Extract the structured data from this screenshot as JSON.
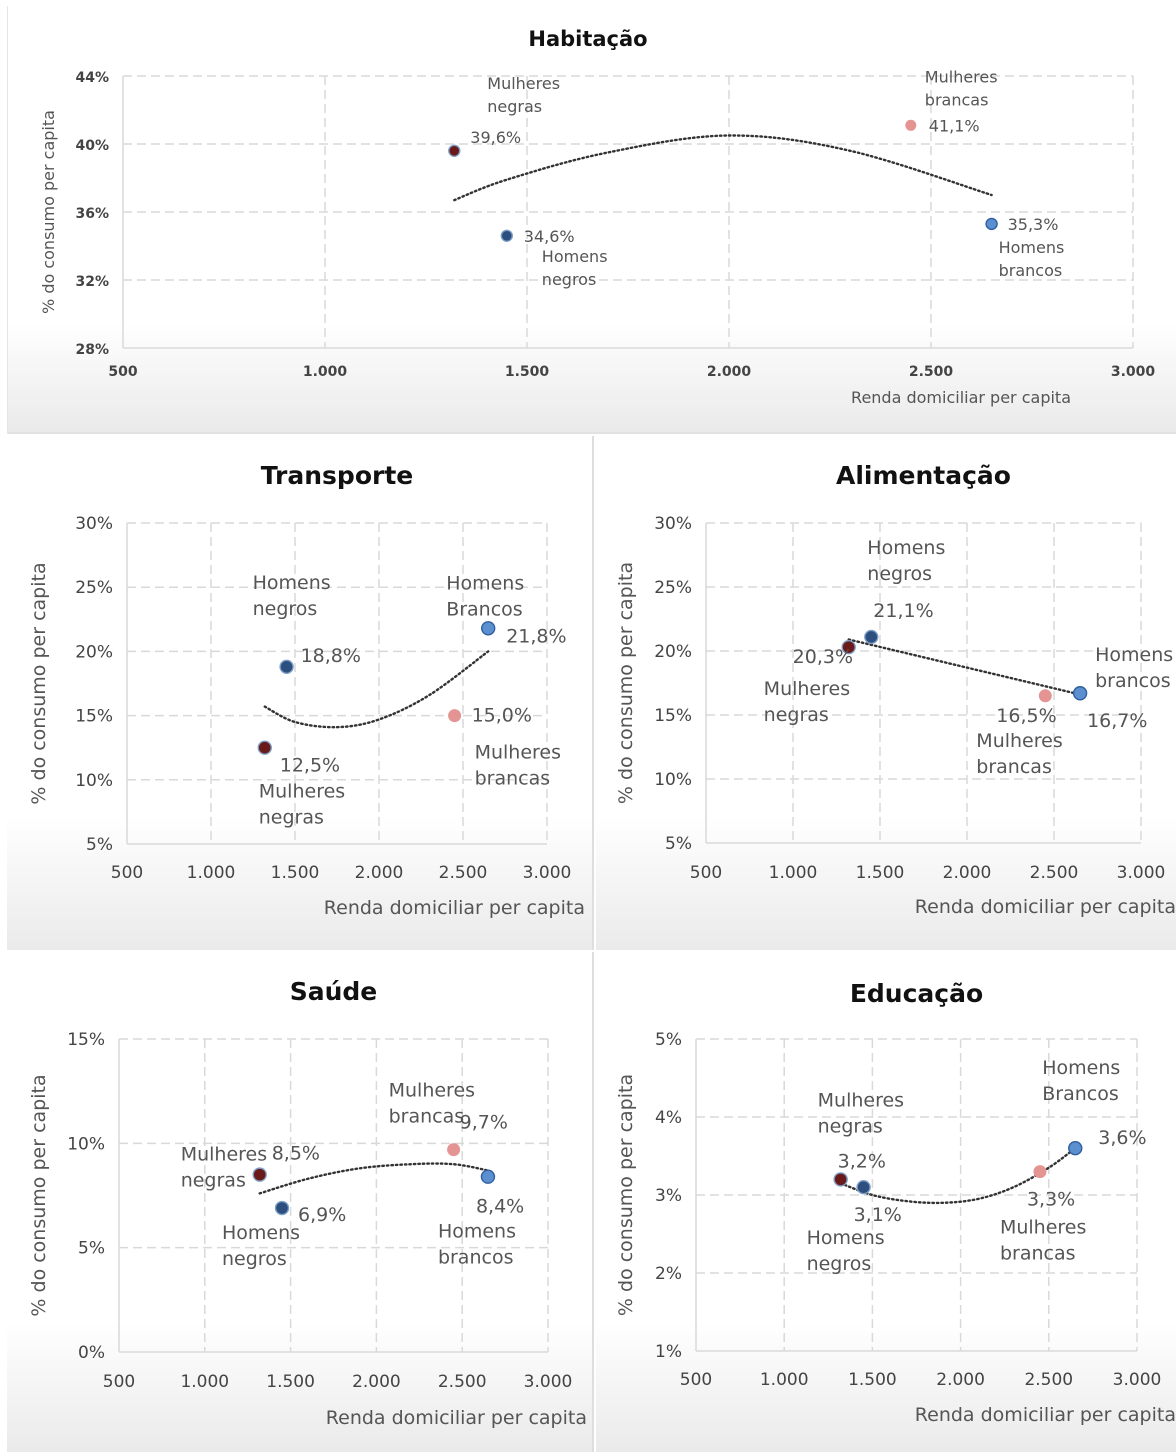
{
  "colors": {
    "mulheres_negras": "#6b1a1a",
    "homens_negros": "#2c4f7f",
    "mulheres_brancas": "#e39493",
    "homens_brancos": "#5b8fd0",
    "grid": "#d9d9d9",
    "trend": "#333333"
  },
  "chart_data": [
    {
      "id": "habitacao",
      "type": "scatter",
      "title": "Habitação",
      "xlabel": "Renda domiciliar per capita",
      "ylabel": "% do consumo per capita",
      "xlim": [
        500,
        3000
      ],
      "ylim": [
        28,
        44
      ],
      "xticks": [
        "500",
        "1.000",
        "1.500",
        "2.000",
        "2.500",
        "3.000"
      ],
      "yticks": [
        "28%",
        "32%",
        "36%",
        "40%",
        "44%"
      ],
      "grid": true,
      "trendline": "polynomial",
      "trend": {
        "x": [
          1320,
          1450,
          1700,
          2000,
          2300,
          2650
        ],
        "y": [
          36.7,
          37.9,
          39.5,
          40.5,
          39.6,
          37.0
        ]
      },
      "points": [
        {
          "series": "mulheres_negras",
          "name": "Mulheres negras",
          "x": 1320,
          "y": 39.6,
          "value_label": "39,6%",
          "label_lines": [
            "Mulheres",
            "negras"
          ]
        },
        {
          "series": "homens_negros",
          "name": "Homens negros",
          "x": 1450,
          "y": 34.6,
          "value_label": "34,6%",
          "label_lines": [
            "Homens",
            "negros"
          ]
        },
        {
          "series": "mulheres_brancas",
          "name": "Mulheres brancas",
          "x": 2450,
          "y": 41.1,
          "value_label": "41,1%",
          "label_lines": [
            "Mulheres",
            "brancas"
          ]
        },
        {
          "series": "homens_brancos",
          "name": "Homens brancos",
          "x": 2650,
          "y": 35.3,
          "value_label": "35,3%",
          "label_lines": [
            "Homens",
            "brancos"
          ]
        }
      ]
    },
    {
      "id": "transporte",
      "type": "scatter",
      "title": "Transporte",
      "xlabel": "Renda domiciliar per capita",
      "ylabel": "% do consumo per capita",
      "xlim": [
        500,
        3000
      ],
      "ylim": [
        5,
        30
      ],
      "xticks": [
        "500",
        "1.000",
        "1.500",
        "2.000",
        "2.500",
        "3.000"
      ],
      "yticks": [
        "5%",
        "10%",
        "15%",
        "20%",
        "25%",
        "30%"
      ],
      "grid": true,
      "trendline": "polynomial",
      "trend": {
        "x": [
          1320,
          1500,
          1750,
          2000,
          2300,
          2650
        ],
        "y": [
          15.7,
          14.5,
          14.1,
          14.7,
          16.6,
          20.0
        ]
      },
      "points": [
        {
          "series": "mulheres_negras",
          "name": "Mulheres negras",
          "x": 1320,
          "y": 12.5,
          "value_label": "12,5%",
          "label_lines": [
            "Mulheres",
            "negras"
          ]
        },
        {
          "series": "homens_negros",
          "name": "Homens negros",
          "x": 1450,
          "y": 18.8,
          "value_label": "18,8%",
          "label_lines": [
            "Homens",
            "negros"
          ]
        },
        {
          "series": "mulheres_brancas",
          "name": "Mulheres brancas",
          "x": 2450,
          "y": 15.0,
          "value_label": "15,0%",
          "label_lines": [
            "Mulheres",
            "brancas"
          ]
        },
        {
          "series": "homens_brancos",
          "name": "Homens Brancos",
          "x": 2650,
          "y": 21.8,
          "value_label": "21,8%",
          "label_lines": [
            "Homens",
            "Brancos"
          ]
        }
      ]
    },
    {
      "id": "alimentacao",
      "type": "scatter",
      "title": "Alimentação",
      "xlabel": "Renda domiciliar per capita",
      "ylabel": "% do consumo per capita",
      "xlim": [
        500,
        3000
      ],
      "ylim": [
        5,
        30
      ],
      "xticks": [
        "500",
        "1.000",
        "1.500",
        "2.000",
        "2.500",
        "3.000"
      ],
      "yticks": [
        "5%",
        "10%",
        "15%",
        "20%",
        "25%",
        "30%"
      ],
      "grid": true,
      "trendline": "linear",
      "trend": {
        "x": [
          1320,
          2650
        ],
        "y": [
          20.9,
          16.6
        ]
      },
      "points": [
        {
          "series": "mulheres_negras",
          "name": "Mulheres negras",
          "x": 1320,
          "y": 20.3,
          "value_label": "20,3%",
          "label_lines": [
            "Mulheres",
            "negras"
          ]
        },
        {
          "series": "homens_negros",
          "name": "Homens negros",
          "x": 1450,
          "y": 21.1,
          "value_label": "21,1%",
          "label_lines": [
            "Homens",
            "negros"
          ]
        },
        {
          "series": "mulheres_brancas",
          "name": "Mulheres brancas",
          "x": 2450,
          "y": 16.5,
          "value_label": "16,5%",
          "label_lines": [
            "Mulheres",
            "brancas"
          ]
        },
        {
          "series": "homens_brancos",
          "name": "Homens brancos",
          "x": 2650,
          "y": 16.7,
          "value_label": "16,7%",
          "label_lines": [
            "Homens",
            "brancos"
          ]
        }
      ]
    },
    {
      "id": "saude",
      "type": "scatter",
      "title": "Saúde",
      "xlabel": "Renda domiciliar per capita",
      "ylabel": "% do consumo per capita",
      "xlim": [
        500,
        3000
      ],
      "ylim": [
        0,
        15
      ],
      "xticks": [
        "500",
        "1.000",
        "1.500",
        "2.000",
        "2.500",
        "3.000"
      ],
      "yticks": [
        "0%",
        "5%",
        "10%",
        "15%"
      ],
      "grid": true,
      "trendline": "polynomial",
      "trend": {
        "x": [
          1320,
          1600,
          1900,
          2200,
          2450,
          2650
        ],
        "y": [
          7.6,
          8.3,
          8.8,
          9.0,
          9.0,
          8.7
        ]
      },
      "points": [
        {
          "series": "mulheres_negras",
          "name": "Mulheres negras",
          "x": 1320,
          "y": 8.5,
          "value_label": "8,5%",
          "label_lines": [
            "Mulheres",
            "negras"
          ]
        },
        {
          "series": "homens_negros",
          "name": "Homens negros",
          "x": 1450,
          "y": 6.9,
          "value_label": "6,9%",
          "label_lines": [
            "Homens",
            "negros"
          ]
        },
        {
          "series": "mulheres_brancas",
          "name": "Mulheres brancas",
          "x": 2450,
          "y": 9.7,
          "value_label": "9,7%",
          "label_lines": [
            "Mulheres",
            "brancas"
          ]
        },
        {
          "series": "homens_brancos",
          "name": "Homens brancos",
          "x": 2650,
          "y": 8.4,
          "value_label": "8,4%",
          "label_lines": [
            "Homens",
            "brancos"
          ]
        }
      ]
    },
    {
      "id": "educacao",
      "type": "scatter",
      "title": "Educação",
      "xlabel": "Renda domiciliar per capita",
      "ylabel": "% do consumo per capita",
      "xlim": [
        500,
        3000
      ],
      "ylim": [
        1,
        5
      ],
      "xticks": [
        "500",
        "1.000",
        "1.500",
        "2.000",
        "2.500",
        "3.000"
      ],
      "yticks": [
        "1%",
        "2%",
        "3%",
        "4%",
        "5%"
      ],
      "grid": true,
      "trendline": "polynomial",
      "trend": {
        "x": [
          1320,
          1500,
          1700,
          1900,
          2100,
          2300,
          2500,
          2650
        ],
        "y": [
          3.15,
          3.0,
          2.92,
          2.9,
          2.95,
          3.1,
          3.35,
          3.6
        ]
      },
      "points": [
        {
          "series": "mulheres_negras",
          "name": "Mulheres negras",
          "x": 1320,
          "y": 3.2,
          "value_label": "3,2%",
          "label_lines": [
            "Mulheres",
            "negras"
          ]
        },
        {
          "series": "homens_negros",
          "name": "Homens negros",
          "x": 1450,
          "y": 3.1,
          "value_label": "3,1%",
          "label_lines": [
            "Homens",
            "negros"
          ]
        },
        {
          "series": "mulheres_brancas",
          "name": "Mulheres brancas",
          "x": 2450,
          "y": 3.3,
          "value_label": "3,3%",
          "label_lines": [
            "Mulheres",
            "brancas"
          ]
        },
        {
          "series": "homens_brancos",
          "name": "Homens Brancos",
          "x": 2650,
          "y": 3.6,
          "value_label": "3,6%",
          "label_lines": [
            "Homens",
            "Brancos"
          ]
        }
      ]
    }
  ]
}
